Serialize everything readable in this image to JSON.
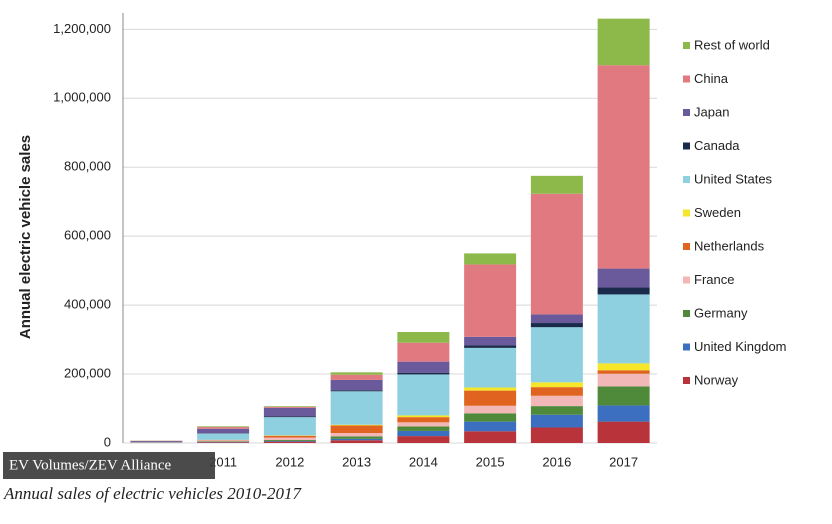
{
  "chart_data": {
    "type": "stacked-bar",
    "y_label": "Annual electric vehicle sales",
    "source": "EV Volumes/ZEV Alliance",
    "caption": "Annual sales of electric vehicles 2010-2017",
    "categories": [
      null,
      "2011",
      "2012",
      "2013",
      "2014",
      "2015",
      "2016",
      "2017"
    ],
    "ylim": [
      0,
      1230000
    ],
    "yticks": [
      {
        "value": 0,
        "label": "0"
      },
      {
        "value": 200000,
        "label": "200,000"
      },
      {
        "value": 400000,
        "label": "400,000"
      },
      {
        "value": 600000,
        "label": "600,000"
      },
      {
        "value": 800000,
        "label": "800,000"
      },
      {
        "value": 1000000,
        "label": "1,000,000"
      },
      {
        "value": 1200000,
        "label": "1,200,000"
      }
    ],
    "grid": true,
    "series": [
      {
        "name": "Norway",
        "color": "#b8343a",
        "values": [
          500,
          2000,
          4000,
          8000,
          20000,
          34000,
          45000,
          62000
        ]
      },
      {
        "name": "United Kingdom",
        "color": "#3d6fc0",
        "values": [
          200,
          1000,
          2000,
          4000,
          15000,
          28000,
          37000,
          47000
        ]
      },
      {
        "name": "Germany",
        "color": "#4e8a3a",
        "values": [
          300,
          2000,
          3000,
          7000,
          13000,
          24000,
          25000,
          55000
        ]
      },
      {
        "name": "France",
        "color": "#f2b8b8",
        "values": [
          300,
          3000,
          7000,
          10000,
          12000,
          22000,
          30000,
          37000
        ]
      },
      {
        "name": "Netherlands",
        "color": "#e0641f",
        "values": [
          100,
          1000,
          5000,
          22000,
          15000,
          44000,
          25000,
          10000
        ]
      },
      {
        "name": "Sweden",
        "color": "#f5e62a",
        "values": [
          100,
          300,
          1000,
          2000,
          5000,
          9000,
          14000,
          20000
        ]
      },
      {
        "name": "United States",
        "color": "#8ecfe0",
        "values": [
          1000,
          18000,
          53000,
          97000,
          119000,
          115000,
          160000,
          200000
        ]
      },
      {
        "name": "Canada",
        "color": "#1a2a4a",
        "values": [
          100,
          1000,
          2000,
          3000,
          5000,
          7000,
          12000,
          20000
        ]
      },
      {
        "name": "Japan",
        "color": "#6a5a9b",
        "values": [
          3000,
          13000,
          25000,
          30000,
          32000,
          25000,
          25000,
          55000
        ]
      },
      {
        "name": "China",
        "color": "#e07a80",
        "values": [
          1000,
          5000,
          3000,
          15000,
          55000,
          210000,
          350000,
          590000
        ]
      },
      {
        "name": "Rest of world",
        "color": "#8db84a",
        "values": [
          400,
          2000,
          2000,
          7000,
          31000,
          32000,
          52000,
          135000
        ]
      }
    ]
  }
}
